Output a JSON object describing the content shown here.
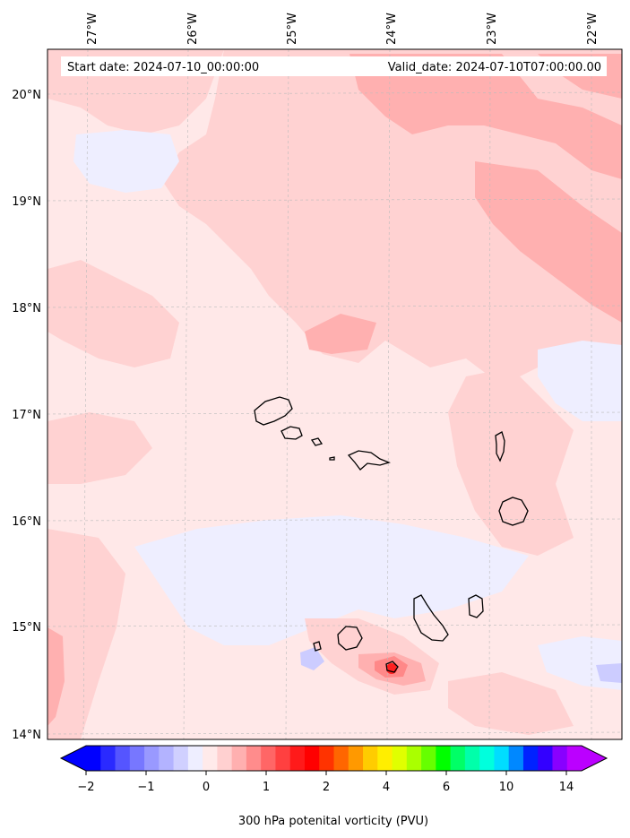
{
  "header": {
    "start_date": "Start date: 2024-07-10_00:00:00",
    "valid_date": "Valid_date: 2024-07-10T07:00:00.00"
  },
  "longitude_labels": [
    "27°W",
    "26°W",
    "25°W",
    "24°W",
    "23°W",
    "22°W"
  ],
  "latitude_labels": [
    "20°N",
    "19°N",
    "18°N",
    "17°N",
    "16°N",
    "15°N",
    "14°N"
  ],
  "colorbar": {
    "label": "300 hPa potenital vorticity (PVU)",
    "tick_labels": [
      "−2",
      "−1",
      "0",
      "1",
      "2",
      "4",
      "6",
      "10",
      "14"
    ],
    "colors": [
      "#0000ff",
      "#2a2aff",
      "#5555ff",
      "#7777ff",
      "#9999ff",
      "#b3b3ff",
      "#d0d0ff",
      "#eeeeff",
      "#ffeaea",
      "#ffd0d0",
      "#ffb0b0",
      "#ff8c8c",
      "#ff6666",
      "#ff4040",
      "#ff1a1a",
      "#ff0000",
      "#ff3300",
      "#ff6600",
      "#ff9900",
      "#ffcc00",
      "#ffee00",
      "#e0ff00",
      "#aaff00",
      "#66ff00",
      "#00ff00",
      "#00ff66",
      "#00ffaa",
      "#00ffdd",
      "#00ddff",
      "#0088ff",
      "#0022ff",
      "#3300ff",
      "#8800ff",
      "#bb00ff"
    ]
  },
  "field_colors": {
    "background": "#ffe8e8",
    "level_1": "#ffd2d2",
    "level_2": "#ffb0b0",
    "level_3": "#ff8888",
    "negative_1": "#eeeeff",
    "negative_2": "#ccccff",
    "max": "#ff2020",
    "coast": "#000000"
  }
}
